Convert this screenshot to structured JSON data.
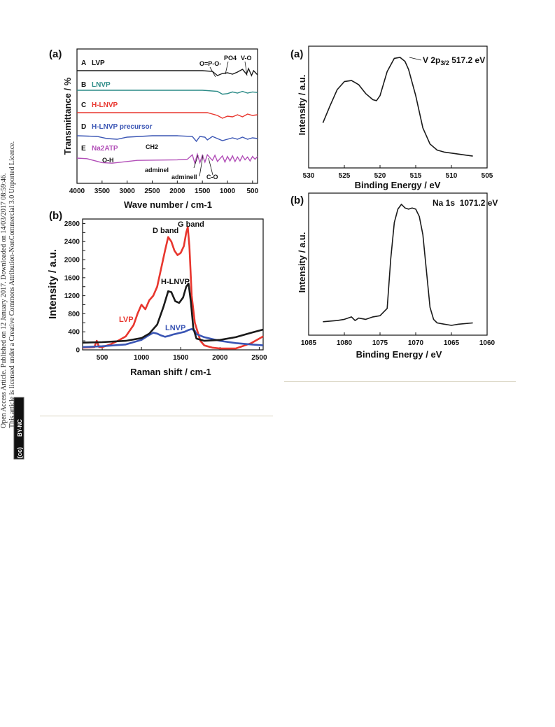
{
  "sidebar": {
    "line1": "Open Access Article. Published on 12 January 2017. Downloaded on 14/03/2017 08:59:46.",
    "line2": "This article is licensed under a Creative Commons Attribution-NonCommercial 3.0 Unported Licence.",
    "cc_badge": "(cc)",
    "by_nc_badge": "BY-NC"
  },
  "colors": {
    "black": "#1a1a1a",
    "red": "#e8362e",
    "blue": "#3a55b4",
    "teal": "#2a8a86",
    "green": "#2f8a4a",
    "purple": "#b24fb8",
    "rule": "#d8d3c0"
  },
  "chart_data": [
    {
      "panel": "(a)",
      "type": "line",
      "xlabel": "Wave number / cm-1",
      "ylabel": "Transmittance / %",
      "xlim": [
        4000,
        400
      ],
      "x_ticks": [
        "4000",
        "3500",
        "3000",
        "2500",
        "2000",
        "1500",
        "1000",
        "500"
      ],
      "series": [
        {
          "letter": "A",
          "name": "LVP",
          "color": "#1a1a1a",
          "x": [
            4000,
            3000,
            2000,
            1500,
            1300,
            1200,
            1100,
            1000,
            900,
            800,
            700,
            620,
            580,
            520,
            480,
            400
          ],
          "y": [
            0.0,
            0.0,
            0.0,
            0.0,
            -0.1,
            -0.7,
            -0.4,
            -0.3,
            -0.5,
            -0.2,
            0.2,
            -0.5,
            0.3,
            -0.7,
            0.0,
            -0.6
          ]
        },
        {
          "letter": "B",
          "name": "LNVP",
          "color": "#2a8a86",
          "x": [
            4000,
            3000,
            2000,
            1500,
            1200,
            1100,
            1000,
            900,
            800,
            700,
            600,
            500,
            400
          ],
          "y": [
            0.0,
            0.0,
            0.0,
            0.0,
            -0.2,
            -0.7,
            -0.6,
            -0.3,
            -0.5,
            -0.2,
            -0.5,
            -0.3,
            -0.4
          ]
        },
        {
          "letter": "C",
          "name": "H-LNVP",
          "color": "#e8362e",
          "x": [
            4000,
            3000,
            2000,
            1400,
            1200,
            1100,
            1000,
            900,
            800,
            700,
            600,
            500,
            400
          ],
          "y": [
            0.0,
            0.0,
            0.0,
            0.0,
            -0.4,
            -0.8,
            -0.5,
            -0.6,
            -0.3,
            -0.6,
            -0.2,
            -0.4,
            -0.3
          ]
        },
        {
          "letter": "D",
          "name": "H-LNVP precursor",
          "color": "#3a55b4",
          "x": [
            4000,
            3600,
            3400,
            3200,
            3000,
            2500,
            2000,
            1700,
            1620,
            1550,
            1450,
            1400,
            1300,
            1100,
            1000,
            900,
            800,
            700,
            600,
            500,
            400
          ],
          "y": [
            0.0,
            -0.1,
            -0.4,
            -0.5,
            -0.2,
            0.0,
            0.0,
            -0.1,
            -0.8,
            -0.1,
            -0.2,
            -0.6,
            -0.1,
            -0.7,
            -0.5,
            -0.3,
            -0.5,
            -0.2,
            -0.5,
            -0.3,
            -0.4
          ]
        },
        {
          "letter": "E",
          "name": "Na2ATP",
          "color": "#b24fb8",
          "x": [
            4000,
            3800,
            3500,
            3300,
            3000,
            2800,
            2000,
            1800,
            1700,
            1650,
            1600,
            1550,
            1500,
            1450,
            1400,
            1300,
            1250,
            1200,
            1100,
            1050,
            1000,
            950,
            900,
            850,
            800,
            750,
            700,
            650,
            600,
            550,
            500,
            450,
            400
          ],
          "y": [
            0.0,
            -0.1,
            -0.8,
            -0.9,
            -0.6,
            -0.4,
            -0.3,
            -0.2,
            0.6,
            -0.9,
            0.7,
            -0.8,
            0.5,
            -0.7,
            0.6,
            -0.4,
            0.5,
            -0.6,
            0.4,
            -0.7,
            0.3,
            -0.5,
            0.4,
            -0.6,
            0.2,
            -0.5,
            0.4,
            -0.3,
            0.2,
            -0.5,
            0.3,
            -0.2,
            0.3
          ]
        }
      ],
      "annotations": [
        "O=P-O-",
        "PO4",
        "V-O",
        "CH2",
        "O-H",
        "adminel",
        "adminell",
        "C-O"
      ]
    },
    {
      "panel": "(b)",
      "type": "line",
      "xlabel": "Raman shift / cm-1",
      "ylabel": "Intensity / a.u.",
      "xlim": [
        250,
        2550
      ],
      "ylim": [
        0,
        2900
      ],
      "x_ticks": [
        500,
        1000,
        1500,
        2000,
        2500
      ],
      "y_ticks": [
        0,
        200,
        400,
        600,
        800,
        1000,
        1200,
        1400,
        1600,
        1800,
        2000,
        2200,
        2400,
        2600,
        2800
      ],
      "band_labels": [
        "D band",
        "G band"
      ],
      "series": [
        {
          "name": "LVP",
          "color": "#e8362e",
          "x": [
            250,
            400,
            430,
            460,
            500,
            600,
            700,
            800,
            900,
            950,
            1000,
            1050,
            1100,
            1150,
            1200,
            1250,
            1300,
            1340,
            1380,
            1420,
            1460,
            1500,
            1540,
            1570,
            1590,
            1610,
            1640,
            1680,
            1750,
            1800,
            1900,
            2000,
            2200,
            2400,
            2550
          ],
          "y": [
            50,
            60,
            200,
            60,
            60,
            120,
            200,
            300,
            550,
            800,
            1000,
            900,
            1100,
            1200,
            1400,
            1800,
            2200,
            2500,
            2400,
            2200,
            2100,
            2150,
            2300,
            2600,
            2720,
            2300,
            1200,
            600,
            200,
            100,
            50,
            30,
            30,
            150,
            300
          ]
        },
        {
          "name": "H-LNVP",
          "color": "#1a1a1a",
          "x": [
            250,
            500,
            800,
            1000,
            1100,
            1200,
            1280,
            1340,
            1380,
            1430,
            1480,
            1530,
            1570,
            1600,
            1630,
            1660,
            1700,
            1800,
            2000,
            2200,
            2400,
            2550
          ],
          "y": [
            160,
            170,
            200,
            260,
            360,
            560,
            950,
            1300,
            1280,
            1080,
            1040,
            1160,
            1400,
            1470,
            1050,
            480,
            250,
            200,
            220,
            280,
            380,
            450
          ]
        },
        {
          "name": "LNVP",
          "color": "#3a55b4",
          "x": [
            250,
            500,
            800,
            1000,
            1100,
            1150,
            1200,
            1250,
            1300,
            1350,
            1400,
            1450,
            1500,
            1550,
            1600,
            1640,
            1680,
            1700,
            1800,
            2000,
            2200,
            2400,
            2550
          ],
          "y": [
            60,
            80,
            120,
            220,
            330,
            380,
            360,
            320,
            290,
            310,
            340,
            360,
            380,
            400,
            440,
            460,
            420,
            350,
            280,
            200,
            150,
            120,
            100
          ]
        }
      ]
    },
    {
      "panel": "(a)",
      "type": "line",
      "xlabel": "Binding Energy / eV",
      "ylabel": "Intensity / a.u.",
      "xlim": [
        530,
        505
      ],
      "x_ticks": [
        530,
        525,
        520,
        515,
        510,
        505
      ],
      "peak_label": "V 2p3/2  517.2 eV",
      "series": [
        {
          "name": "V 2p",
          "color": "#1a1a1a",
          "x": [
            528,
            527,
            526,
            525,
            524,
            523,
            522,
            521,
            520.5,
            520,
            519,
            518,
            517.2,
            516.5,
            516,
            515,
            514,
            513,
            512,
            511,
            510,
            508,
            507
          ],
          "y": [
            0.35,
            0.52,
            0.68,
            0.76,
            0.77,
            0.73,
            0.64,
            0.58,
            0.57,
            0.62,
            0.86,
            0.99,
            1.0,
            0.96,
            0.88,
            0.62,
            0.3,
            0.14,
            0.08,
            0.06,
            0.05,
            0.03,
            0.02
          ]
        }
      ]
    },
    {
      "panel": "(b)",
      "type": "line",
      "xlabel": "Binding Energy / eV",
      "ylabel": "Intensity / a.u.",
      "xlim": [
        1085,
        1060
      ],
      "x_ticks": [
        1085,
        1080,
        1075,
        1070,
        1065,
        1060
      ],
      "peak_label": "Na 1s  1071.2 eV",
      "series": [
        {
          "name": "Na 1s",
          "color": "#1a1a1a",
          "x": [
            1083,
            1081,
            1080,
            1079,
            1078.5,
            1078,
            1077,
            1076,
            1075,
            1074,
            1073.5,
            1073,
            1072.5,
            1072,
            1071.5,
            1071,
            1070.5,
            1070,
            1069.5,
            1069,
            1068.5,
            1068,
            1067.5,
            1067,
            1066,
            1065,
            1064,
            1062
          ],
          "y": [
            0.03,
            0.04,
            0.05,
            0.07,
            0.04,
            0.06,
            0.05,
            0.07,
            0.08,
            0.14,
            0.55,
            0.85,
            0.96,
            1.0,
            0.97,
            0.96,
            0.97,
            0.96,
            0.9,
            0.75,
            0.45,
            0.15,
            0.05,
            0.02,
            0.01,
            0.0,
            0.01,
            0.02
          ]
        }
      ]
    }
  ]
}
